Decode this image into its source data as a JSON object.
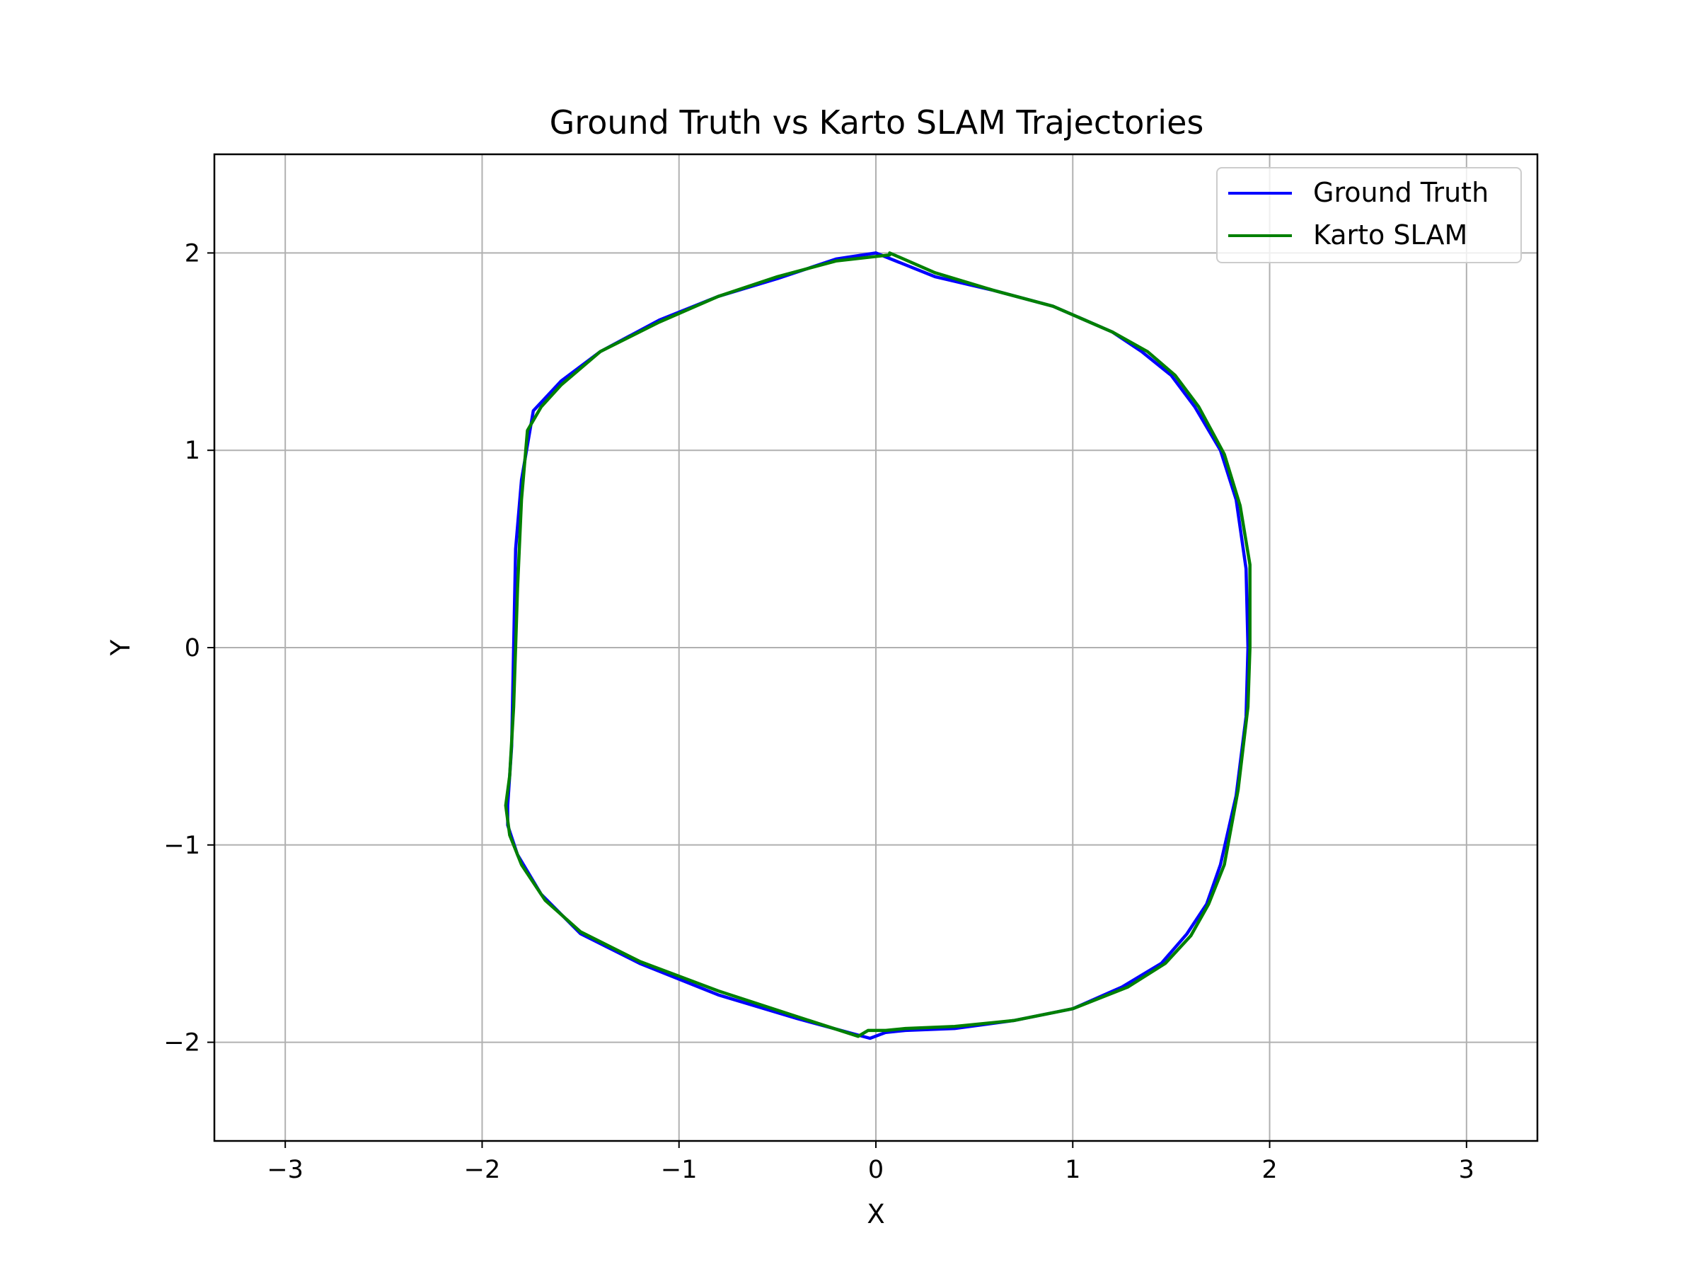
{
  "chart_data": {
    "type": "line",
    "title": "Ground Truth vs Karto SLAM Trajectories",
    "xlabel": "X",
    "ylabel": "Y",
    "xlim": [
      -3.36,
      3.36
    ],
    "ylim": [
      -2.5,
      2.5
    ],
    "xticks": [
      -3,
      -2,
      -1,
      0,
      1,
      2,
      3
    ],
    "yticks": [
      -2,
      -1,
      0,
      1,
      2
    ],
    "xtick_labels": [
      "−3",
      "−2",
      "−1",
      "0",
      "1",
      "2",
      "3"
    ],
    "ytick_labels": [
      "−2",
      "−1",
      "0",
      "1",
      "2"
    ],
    "grid": true,
    "legend_position": "top-right",
    "series": [
      {
        "name": "Ground Truth",
        "color": "#0000ff",
        "x": [
          0.0,
          0.3,
          0.6,
          0.9,
          1.2,
          1.35,
          1.5,
          1.62,
          1.75,
          1.83,
          1.88,
          1.89,
          1.88,
          1.83,
          1.75,
          1.68,
          1.58,
          1.45,
          1.25,
          1.0,
          0.7,
          0.4,
          0.15,
          0.05,
          -0.03,
          -0.4,
          -0.8,
          -1.2,
          -1.5,
          -1.7,
          -1.82,
          -1.87,
          -1.87,
          -1.85,
          -1.84,
          -1.83,
          -1.8,
          -1.74,
          -1.6,
          -1.4,
          -1.1,
          -0.8,
          -0.5,
          -0.2,
          0.0
        ],
        "y": [
          2.0,
          1.88,
          1.81,
          1.73,
          1.6,
          1.5,
          1.38,
          1.22,
          1.0,
          0.75,
          0.4,
          0.0,
          -0.35,
          -0.75,
          -1.1,
          -1.3,
          -1.45,
          -1.6,
          -1.72,
          -1.83,
          -1.89,
          -1.93,
          -1.94,
          -1.95,
          -1.98,
          -1.88,
          -1.76,
          -1.6,
          -1.45,
          -1.25,
          -1.05,
          -0.9,
          -0.8,
          -0.5,
          0.0,
          0.5,
          0.85,
          1.2,
          1.35,
          1.5,
          1.66,
          1.78,
          1.87,
          1.97,
          2.0
        ]
      },
      {
        "name": "Karto SLAM",
        "color": "#008000",
        "x": [
          0.07,
          0.3,
          0.6,
          0.9,
          1.2,
          1.38,
          1.52,
          1.64,
          1.77,
          1.85,
          1.9,
          1.9,
          1.89,
          1.84,
          1.77,
          1.69,
          1.6,
          1.47,
          1.28,
          1.0,
          0.7,
          0.4,
          0.15,
          0.05,
          -0.04,
          -0.09,
          -0.4,
          -0.8,
          -1.2,
          -1.5,
          -1.68,
          -1.8,
          -1.86,
          -1.88,
          -1.86,
          -1.84,
          -1.82,
          -1.8,
          -1.77,
          -1.7,
          -1.6,
          -1.4,
          -1.1,
          -0.8,
          -0.5,
          -0.2,
          0.07
        ],
        "y": [
          2.0,
          1.9,
          1.81,
          1.73,
          1.6,
          1.5,
          1.38,
          1.22,
          0.98,
          0.72,
          0.42,
          0.0,
          -0.3,
          -0.72,
          -1.1,
          -1.3,
          -1.46,
          -1.6,
          -1.72,
          -1.83,
          -1.89,
          -1.92,
          -1.93,
          -1.94,
          -1.94,
          -1.97,
          -1.87,
          -1.74,
          -1.59,
          -1.44,
          -1.28,
          -1.1,
          -0.95,
          -0.8,
          -0.65,
          -0.3,
          0.3,
          0.75,
          1.1,
          1.22,
          1.33,
          1.5,
          1.65,
          1.78,
          1.88,
          1.96,
          1.99
        ]
      }
    ]
  }
}
